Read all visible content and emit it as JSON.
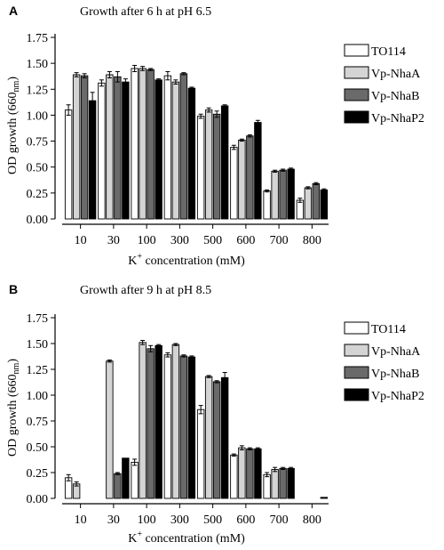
{
  "colors": {
    "TO114": "#ffffff",
    "Vp-NhaA": "#d4d4d4",
    "Vp-NhaB": "#6a6a6a",
    "Vp-NhaP2": "#000000",
    "outline": "#000000",
    "axis": "#000000"
  },
  "chart_data": [
    {
      "panel": "A",
      "type": "bar",
      "title": "Growth after 6 h at pH 6.5",
      "ylabel_prefix": "OD growth (660",
      "ylabel_sub": "nm",
      "ylabel_suffix": ")",
      "xlabel_prefix": "K",
      "xlabel_sup": "+",
      "xlabel_suffix": " concentration (mM)",
      "ylim": [
        0,
        1.75
      ],
      "yticks": [
        "0.00",
        "0.25",
        "0.50",
        "0.75",
        "1.00",
        "1.25",
        "1.50",
        "1.75"
      ],
      "categories": [
        "10",
        "30",
        "100",
        "300",
        "500",
        "600",
        "700",
        "800"
      ],
      "legend_position": "right",
      "series": [
        {
          "name": "TO114",
          "values": [
            1.05,
            1.31,
            1.45,
            1.38,
            0.99,
            0.69,
            0.27,
            0.18
          ],
          "errors": [
            0.05,
            0.03,
            0.03,
            0.04,
            0.02,
            0.02,
            0.01,
            0.02
          ]
        },
        {
          "name": "Vp-NhaA",
          "values": [
            1.39,
            1.39,
            1.45,
            1.32,
            1.05,
            0.76,
            0.46,
            0.3
          ],
          "errors": [
            0.02,
            0.03,
            0.02,
            0.02,
            0.02,
            0.01,
            0.01,
            0.01
          ]
        },
        {
          "name": "Vp-NhaB",
          "values": [
            1.38,
            1.37,
            1.44,
            1.4,
            1.01,
            0.8,
            0.47,
            0.34
          ],
          "errors": [
            0.02,
            0.05,
            0.01,
            0.01,
            0.03,
            0.01,
            0.01,
            0.01
          ]
        },
        {
          "name": "Vp-NhaP2",
          "values": [
            1.14,
            1.32,
            1.34,
            1.26,
            1.09,
            0.93,
            0.48,
            0.28
          ],
          "errors": [
            0.08,
            0.03,
            0.01,
            0.01,
            0.01,
            0.02,
            0.01,
            0.01
          ]
        }
      ]
    },
    {
      "panel": "B",
      "type": "bar",
      "title": "Growth after 9 h at pH 8.5",
      "ylabel_prefix": "OD growth (660",
      "ylabel_sub": "nm",
      "ylabel_suffix": ")",
      "xlabel_prefix": "K",
      "xlabel_sup": "+",
      "xlabel_suffix": " concentration (mM)",
      "ylim": [
        0,
        1.75
      ],
      "yticks": [
        "0.00",
        "0.25",
        "0.50",
        "0.75",
        "1.00",
        "1.25",
        "1.50",
        "1.75"
      ],
      "categories": [
        "10",
        "30",
        "100",
        "300",
        "500",
        "600",
        "700",
        "800"
      ],
      "legend_position": "right",
      "series": [
        {
          "name": "TO114",
          "values": [
            0.2,
            0.0,
            0.35,
            1.39,
            0.86,
            0.42,
            0.23,
            0.0
          ],
          "errors": [
            0.03,
            0.0,
            0.03,
            0.02,
            0.04,
            0.01,
            0.02,
            0.0
          ]
        },
        {
          "name": "Vp-NhaA",
          "values": [
            0.14,
            1.33,
            1.51,
            1.49,
            1.18,
            0.49,
            0.28,
            0.0
          ],
          "errors": [
            0.02,
            0.01,
            0.02,
            0.01,
            0.01,
            0.02,
            0.02,
            0.0
          ]
        },
        {
          "name": "Vp-NhaB",
          "values": [
            0.0,
            0.24,
            1.45,
            1.38,
            1.13,
            0.48,
            0.29,
            0.0
          ],
          "errors": [
            0.0,
            0.01,
            0.03,
            0.01,
            0.01,
            0.01,
            0.01,
            0.0
          ]
        },
        {
          "name": "Vp-NhaP2",
          "values": [
            0.0,
            0.39,
            1.48,
            1.37,
            1.17,
            0.48,
            0.29,
            0.01
          ],
          "errors": [
            0.0,
            0.0,
            0.01,
            0.01,
            0.05,
            0.01,
            0.01,
            0.0
          ]
        }
      ]
    }
  ]
}
